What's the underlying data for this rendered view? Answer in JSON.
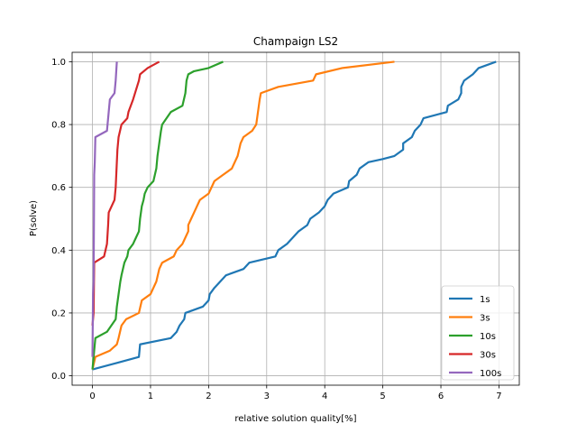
{
  "chart_data": {
    "type": "line",
    "title": "Champaign LS2",
    "xlabel": "relative solution quality[%]",
    "ylabel": "P(solve)",
    "xlim": [
      -0.35,
      7.35
    ],
    "ylim": [
      -0.03,
      1.03
    ],
    "xticks": [
      0,
      1,
      2,
      3,
      4,
      5,
      6,
      7
    ],
    "yticks": [
      0.0,
      0.2,
      0.4,
      0.6,
      0.8,
      1.0
    ],
    "xtick_labels": [
      "0",
      "1",
      "2",
      "3",
      "4",
      "5",
      "6",
      "7"
    ],
    "ytick_labels": [
      "0.0",
      "0.2",
      "0.4",
      "0.6",
      "0.8",
      "1.0"
    ],
    "grid": true,
    "legend_position": "lower-right",
    "series": [
      {
        "name": "1s",
        "color": "#1f77b4",
        "points": [
          [
            0,
            0.02
          ],
          [
            0.4,
            0.04
          ],
          [
            0.8,
            0.06
          ],
          [
            0.82,
            0.1
          ],
          [
            1.35,
            0.12
          ],
          [
            1.45,
            0.14
          ],
          [
            1.5,
            0.16
          ],
          [
            1.58,
            0.18
          ],
          [
            1.6,
            0.2
          ],
          [
            1.9,
            0.22
          ],
          [
            2.0,
            0.24
          ],
          [
            2.02,
            0.26
          ],
          [
            2.1,
            0.28
          ],
          [
            2.2,
            0.3
          ],
          [
            2.3,
            0.32
          ],
          [
            2.6,
            0.34
          ],
          [
            2.7,
            0.36
          ],
          [
            3.15,
            0.38
          ],
          [
            3.2,
            0.4
          ],
          [
            3.35,
            0.42
          ],
          [
            3.45,
            0.44
          ],
          [
            3.55,
            0.46
          ],
          [
            3.7,
            0.48
          ],
          [
            3.75,
            0.5
          ],
          [
            3.9,
            0.52
          ],
          [
            4.0,
            0.54
          ],
          [
            4.05,
            0.56
          ],
          [
            4.15,
            0.58
          ],
          [
            4.4,
            0.6
          ],
          [
            4.42,
            0.62
          ],
          [
            4.55,
            0.64
          ],
          [
            4.6,
            0.66
          ],
          [
            4.75,
            0.68
          ],
          [
            5.0,
            0.69
          ],
          [
            5.2,
            0.7
          ],
          [
            5.35,
            0.72
          ],
          [
            5.35,
            0.74
          ],
          [
            5.5,
            0.76
          ],
          [
            5.55,
            0.78
          ],
          [
            5.65,
            0.8
          ],
          [
            5.7,
            0.82
          ],
          [
            6.1,
            0.84
          ],
          [
            6.12,
            0.86
          ],
          [
            6.3,
            0.88
          ],
          [
            6.35,
            0.9
          ],
          [
            6.35,
            0.92
          ],
          [
            6.4,
            0.94
          ],
          [
            6.55,
            0.96
          ],
          [
            6.65,
            0.98
          ],
          [
            6.95,
            1.0
          ]
        ]
      },
      {
        "name": "3s",
        "color": "#ff7f0e",
        "points": [
          [
            0,
            0.02
          ],
          [
            0.05,
            0.06
          ],
          [
            0.3,
            0.08
          ],
          [
            0.42,
            0.1
          ],
          [
            0.45,
            0.12
          ],
          [
            0.5,
            0.16
          ],
          [
            0.58,
            0.18
          ],
          [
            0.8,
            0.2
          ],
          [
            0.85,
            0.24
          ],
          [
            1.0,
            0.26
          ],
          [
            1.1,
            0.3
          ],
          [
            1.15,
            0.34
          ],
          [
            1.2,
            0.36
          ],
          [
            1.4,
            0.38
          ],
          [
            1.45,
            0.4
          ],
          [
            1.55,
            0.42
          ],
          [
            1.6,
            0.44
          ],
          [
            1.65,
            0.46
          ],
          [
            1.65,
            0.48
          ],
          [
            1.7,
            0.5
          ],
          [
            1.75,
            0.52
          ],
          [
            1.8,
            0.54
          ],
          [
            1.85,
            0.56
          ],
          [
            2.0,
            0.58
          ],
          [
            2.1,
            0.62
          ],
          [
            2.25,
            0.64
          ],
          [
            2.4,
            0.66
          ],
          [
            2.5,
            0.7
          ],
          [
            2.55,
            0.74
          ],
          [
            2.6,
            0.76
          ],
          [
            2.75,
            0.78
          ],
          [
            2.82,
            0.8
          ],
          [
            2.85,
            0.84
          ],
          [
            2.88,
            0.88
          ],
          [
            2.9,
            0.9
          ],
          [
            3.2,
            0.92
          ],
          [
            3.8,
            0.94
          ],
          [
            3.85,
            0.96
          ],
          [
            4.3,
            0.98
          ],
          [
            5.2,
            1.0
          ]
        ]
      },
      {
        "name": "10s",
        "color": "#2ca02c",
        "points": [
          [
            0,
            0.02
          ],
          [
            0.05,
            0.12
          ],
          [
            0.25,
            0.14
          ],
          [
            0.4,
            0.18
          ],
          [
            0.42,
            0.22
          ],
          [
            0.45,
            0.26
          ],
          [
            0.48,
            0.3
          ],
          [
            0.5,
            0.32
          ],
          [
            0.55,
            0.36
          ],
          [
            0.6,
            0.38
          ],
          [
            0.62,
            0.4
          ],
          [
            0.7,
            0.42
          ],
          [
            0.75,
            0.44
          ],
          [
            0.8,
            0.46
          ],
          [
            0.82,
            0.5
          ],
          [
            0.85,
            0.54
          ],
          [
            0.88,
            0.56
          ],
          [
            0.9,
            0.58
          ],
          [
            0.95,
            0.6
          ],
          [
            1.05,
            0.62
          ],
          [
            1.1,
            0.66
          ],
          [
            1.12,
            0.7
          ],
          [
            1.15,
            0.74
          ],
          [
            1.18,
            0.78
          ],
          [
            1.2,
            0.8
          ],
          [
            1.35,
            0.84
          ],
          [
            1.55,
            0.86
          ],
          [
            1.6,
            0.9
          ],
          [
            1.62,
            0.94
          ],
          [
            1.65,
            0.96
          ],
          [
            1.75,
            0.97
          ],
          [
            2.0,
            0.98
          ],
          [
            2.25,
            1.0
          ]
        ]
      },
      {
        "name": "30s",
        "color": "#d62728",
        "points": [
          [
            0,
            0.16
          ],
          [
            0.02,
            0.2
          ],
          [
            0.03,
            0.36
          ],
          [
            0.2,
            0.38
          ],
          [
            0.25,
            0.42
          ],
          [
            0.27,
            0.48
          ],
          [
            0.28,
            0.52
          ],
          [
            0.38,
            0.56
          ],
          [
            0.4,
            0.6
          ],
          [
            0.42,
            0.68
          ],
          [
            0.43,
            0.72
          ],
          [
            0.45,
            0.76
          ],
          [
            0.5,
            0.8
          ],
          [
            0.6,
            0.82
          ],
          [
            0.62,
            0.84
          ],
          [
            0.7,
            0.88
          ],
          [
            0.8,
            0.94
          ],
          [
            0.82,
            0.96
          ],
          [
            0.95,
            0.98
          ],
          [
            1.15,
            1.0
          ]
        ]
      },
      {
        "name": "100s",
        "color": "#9467bd",
        "points": [
          [
            0,
            0.06
          ],
          [
            0.01,
            0.26
          ],
          [
            0.02,
            0.3
          ],
          [
            0.03,
            0.64
          ],
          [
            0.04,
            0.68
          ],
          [
            0.05,
            0.76
          ],
          [
            0.25,
            0.78
          ],
          [
            0.28,
            0.84
          ],
          [
            0.3,
            0.88
          ],
          [
            0.38,
            0.9
          ],
          [
            0.4,
            0.94
          ],
          [
            0.42,
            1.0
          ]
        ]
      }
    ]
  }
}
